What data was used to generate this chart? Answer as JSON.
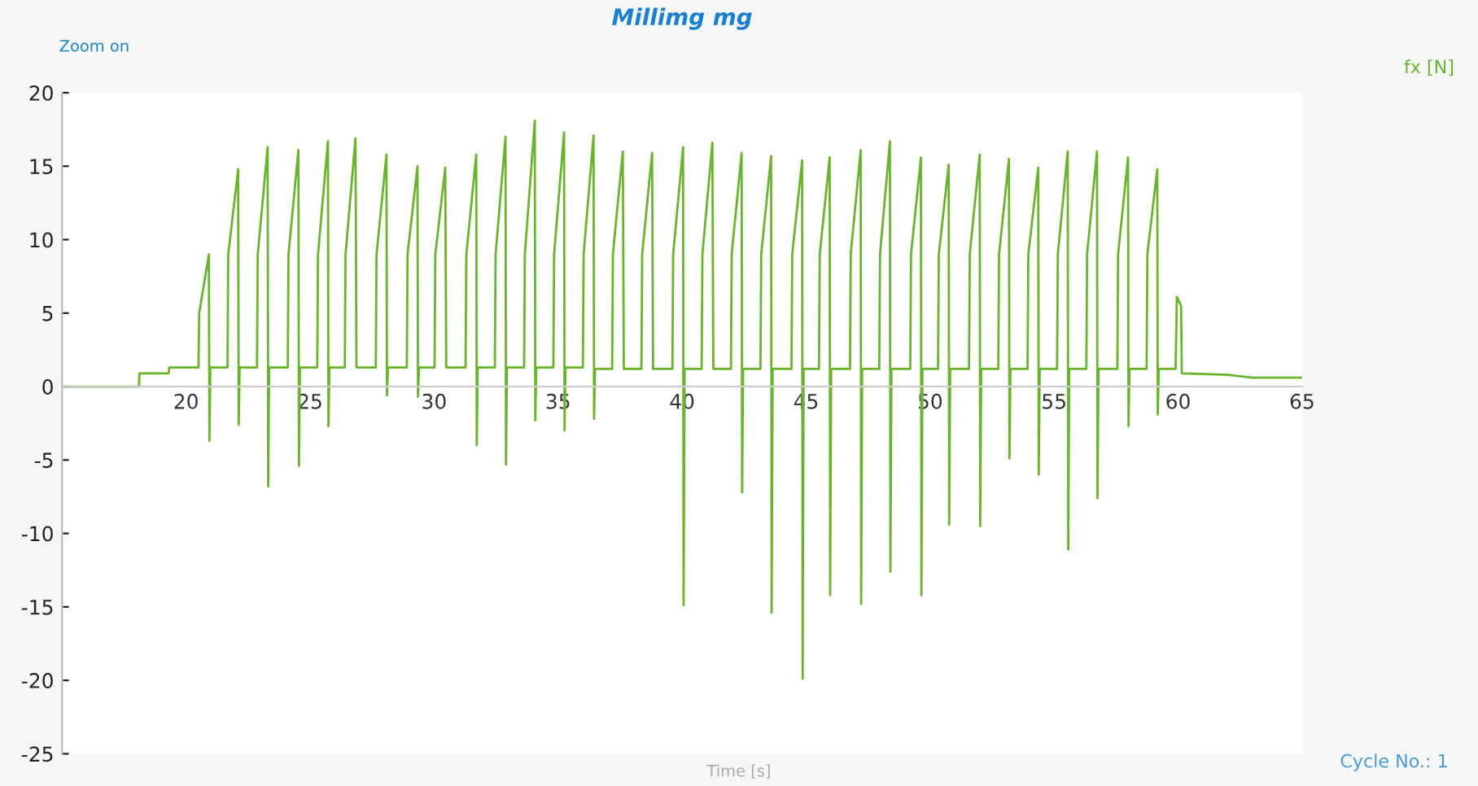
{
  "chart_data": {
    "type": "line",
    "title": "Millimg mg",
    "xlabel": "Time [s]",
    "annotations": [
      "Zoom on",
      "Cycle No.: 1"
    ],
    "xlim": [
      15,
      65
    ],
    "xticks": [
      20,
      25,
      30,
      35,
      40,
      45,
      50,
      55,
      60,
      65
    ],
    "ylim": [
      -25,
      20
    ],
    "yticks": [
      -25,
      -20,
      -15,
      -10,
      -5,
      0,
      5,
      10,
      15,
      20
    ],
    "grid": false,
    "legend": "top right",
    "marker": "none",
    "line_style": "solid",
    "series": [
      {
        "name": "fx [N]",
        "color": "#6ab42d",
        "x": [
          15,
          18.1,
          18.12,
          19.3,
          19.32,
          20.5,
          20.53,
          20.92,
          20.94,
          20.98,
          21.67,
          21.7,
          22.1,
          22.12,
          22.16,
          22.86,
          22.89,
          23.29,
          23.31,
          23.35,
          24.1,
          24.13,
          24.53,
          24.55,
          24.59,
          25.29,
          25.32,
          25.72,
          25.74,
          25.78,
          26.4,
          26.43,
          26.83,
          26.87,
          27.65,
          27.68,
          28.08,
          28.1,
          28.14,
          28.9,
          28.93,
          29.33,
          29.35,
          29.39,
          30.02,
          30.05,
          30.45,
          30.49,
          31.27,
          31.3,
          31.7,
          31.72,
          31.76,
          32.45,
          32.48,
          32.88,
          32.9,
          32.94,
          33.63,
          33.66,
          34.06,
          34.08,
          34.12,
          34.81,
          34.84,
          35.24,
          35.26,
          35.3,
          36.0,
          36.03,
          36.43,
          36.45,
          36.49,
          37.18,
          37.21,
          37.61,
          37.65,
          38.36,
          38.39,
          38.79,
          38.83,
          39.61,
          39.64,
          40.04,
          40.06,
          40.1,
          40.79,
          40.82,
          41.22,
          41.26,
          41.97,
          42.0,
          42.4,
          42.42,
          42.46,
          43.16,
          43.19,
          43.59,
          43.61,
          43.65,
          44.41,
          44.44,
          44.84,
          44.86,
          44.9,
          45.52,
          45.55,
          45.95,
          45.97,
          46.01,
          46.77,
          46.8,
          47.2,
          47.22,
          47.26,
          47.95,
          47.98,
          48.38,
          48.4,
          48.44,
          49.2,
          49.23,
          49.63,
          49.65,
          49.69,
          50.32,
          50.35,
          50.75,
          50.77,
          50.81,
          51.57,
          51.6,
          52.0,
          52.02,
          52.06,
          52.75,
          52.78,
          53.18,
          53.2,
          53.24,
          53.93,
          53.96,
          54.36,
          54.38,
          54.42,
          55.12,
          55.15,
          55.55,
          55.57,
          55.61,
          56.3,
          56.33,
          56.73,
          56.75,
          56.79,
          57.55,
          57.58,
          57.98,
          58.0,
          58.04,
          58.73,
          58.76,
          59.16,
          59.18,
          59.22,
          59.9,
          59.95,
          60.12,
          60.15,
          62,
          63,
          65
        ],
        "values": [
          0,
          0,
          0.9,
          0.9,
          1.3,
          1.3,
          5,
          9.0,
          -3.7,
          1.3,
          1.3,
          9,
          14.8,
          -2.6,
          1.3,
          1.3,
          9,
          16.3,
          -6.8,
          1.3,
          1.3,
          9,
          16.1,
          -5.4,
          1.3,
          1.3,
          9,
          16.7,
          -2.7,
          1.3,
          1.3,
          9,
          16.9,
          1.3,
          1.3,
          9,
          15.8,
          -0.6,
          1.3,
          1.3,
          9,
          15.0,
          -0.7,
          1.3,
          1.3,
          9,
          14.9,
          1.3,
          1.3,
          9,
          15.8,
          -4.0,
          1.3,
          1.3,
          9,
          17.0,
          -5.3,
          1.3,
          1.3,
          9,
          18.1,
          -2.3,
          1.3,
          1.3,
          9,
          17.3,
          -3.0,
          1.3,
          1.3,
          9,
          17.1,
          -2.2,
          1.2,
          1.2,
          9,
          16.0,
          1.2,
          1.2,
          9,
          15.9,
          1.2,
          1.2,
          9,
          16.3,
          -14.9,
          1.2,
          1.2,
          9,
          16.6,
          1.2,
          1.2,
          9,
          15.9,
          -7.2,
          1.2,
          1.2,
          9,
          15.7,
          -15.4,
          1.2,
          1.2,
          9,
          15.4,
          -19.9,
          1.2,
          1.2,
          9,
          15.6,
          -14.2,
          1.2,
          1.2,
          9,
          16.1,
          -14.8,
          1.2,
          1.2,
          9,
          16.7,
          -12.6,
          1.2,
          1.2,
          9,
          15.6,
          -14.2,
          1.2,
          1.2,
          9,
          15.1,
          -9.4,
          1.2,
          1.2,
          9,
          15.8,
          -9.5,
          1.2,
          1.2,
          9,
          15.5,
          -4.9,
          1.2,
          1.2,
          9,
          14.9,
          -6.0,
          1.2,
          1.2,
          9,
          16.0,
          -11.1,
          1.2,
          1.2,
          9,
          16.0,
          -7.6,
          1.2,
          1.2,
          9,
          15.6,
          -2.7,
          1.2,
          1.2,
          9,
          14.8,
          -1.9,
          1.2,
          1.2,
          6.1,
          5.5,
          0.9,
          0.8,
          0.6,
          0.6
        ]
      }
    ]
  }
}
